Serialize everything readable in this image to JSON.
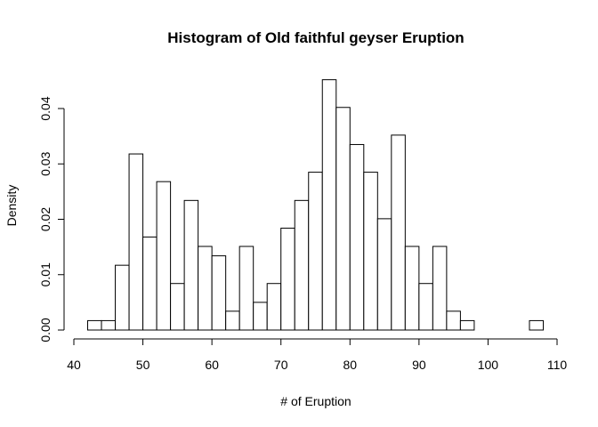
{
  "chart_data": {
    "type": "bar",
    "title": "Histogram of Old faithful geyser Eruption",
    "xlabel": "# of Eruption",
    "ylabel": "Density",
    "xlim": [
      40,
      110
    ],
    "ylim": [
      0,
      0.045
    ],
    "bin_width": 2,
    "bins": [
      {
        "x0": 42,
        "x1": 44,
        "density": 0.0017
      },
      {
        "x0": 44,
        "x1": 46,
        "density": 0.0017
      },
      {
        "x0": 46,
        "x1": 48,
        "density": 0.0117
      },
      {
        "x0": 48,
        "x1": 50,
        "density": 0.0318
      },
      {
        "x0": 50,
        "x1": 52,
        "density": 0.0168
      },
      {
        "x0": 52,
        "x1": 54,
        "density": 0.0268
      },
      {
        "x0": 54,
        "x1": 56,
        "density": 0.0084
      },
      {
        "x0": 56,
        "x1": 58,
        "density": 0.0234
      },
      {
        "x0": 58,
        "x1": 60,
        "density": 0.0151
      },
      {
        "x0": 60,
        "x1": 62,
        "density": 0.0134
      },
      {
        "x0": 62,
        "x1": 64,
        "density": 0.0034
      },
      {
        "x0": 64,
        "x1": 66,
        "density": 0.0151
      },
      {
        "x0": 66,
        "x1": 68,
        "density": 0.005
      },
      {
        "x0": 68,
        "x1": 70,
        "density": 0.0084
      },
      {
        "x0": 70,
        "x1": 72,
        "density": 0.0184
      },
      {
        "x0": 72,
        "x1": 74,
        "density": 0.0234
      },
      {
        "x0": 74,
        "x1": 76,
        "density": 0.0285
      },
      {
        "x0": 76,
        "x1": 78,
        "density": 0.0452
      },
      {
        "x0": 78,
        "x1": 80,
        "density": 0.0402
      },
      {
        "x0": 80,
        "x1": 82,
        "density": 0.0335
      },
      {
        "x0": 82,
        "x1": 84,
        "density": 0.0285
      },
      {
        "x0": 84,
        "x1": 86,
        "density": 0.0201
      },
      {
        "x0": 86,
        "x1": 88,
        "density": 0.0352
      },
      {
        "x0": 88,
        "x1": 90,
        "density": 0.0151
      },
      {
        "x0": 90,
        "x1": 92,
        "density": 0.0084
      },
      {
        "x0": 92,
        "x1": 94,
        "density": 0.0151
      },
      {
        "x0": 94,
        "x1": 96,
        "density": 0.0034
      },
      {
        "x0": 96,
        "x1": 98,
        "density": 0.0017
      },
      {
        "x0": 98,
        "x1": 100,
        "density": 0
      },
      {
        "x0": 100,
        "x1": 102,
        "density": 0
      },
      {
        "x0": 102,
        "x1": 104,
        "density": 0
      },
      {
        "x0": 104,
        "x1": 106,
        "density": 0
      },
      {
        "x0": 106,
        "x1": 108,
        "density": 0.0017
      }
    ],
    "x_ticks": [
      40,
      50,
      60,
      70,
      80,
      90,
      100,
      110
    ],
    "x_tick_labels": [
      "40",
      "50",
      "60",
      "70",
      "80",
      "90",
      "100",
      "110"
    ],
    "y_ticks": [
      0,
      0.01,
      0.02,
      0.03,
      0.04
    ],
    "y_tick_labels": [
      "0.00",
      "0.01",
      "0.02",
      "0.03",
      "0.04"
    ],
    "grid": false,
    "bar_fill": "#ffffff",
    "bar_stroke": "#000000"
  }
}
